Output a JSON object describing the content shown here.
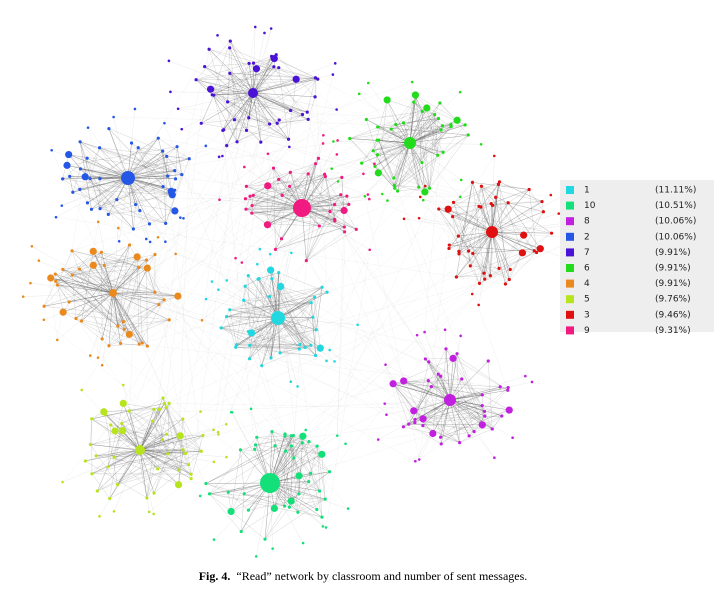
{
  "figure": {
    "legend": {
      "items": [
        {
          "label": "1",
          "share": "(11.11%)",
          "color": "#22d8e0"
        },
        {
          "label": "10",
          "share": "(10.51%)",
          "color": "#14e07a"
        },
        {
          "label": "8",
          "share": "(10.06%)",
          "color": "#c21fe0"
        },
        {
          "label": "2",
          "share": "(10.06%)",
          "color": "#2457e6"
        },
        {
          "label": "7",
          "share": "(9.91%)",
          "color": "#4a12d6"
        },
        {
          "label": "6",
          "share": "(9.91%)",
          "color": "#22dc1c"
        },
        {
          "label": "4",
          "share": "(9.91%)",
          "color": "#ea8a1e"
        },
        {
          "label": "5",
          "share": "(9.76%)",
          "color": "#b8e41e"
        },
        {
          "label": "3",
          "share": "(9.46%)",
          "color": "#e01010"
        },
        {
          "label": "9",
          "share": "(9.31%)",
          "color": "#f01a80"
        }
      ]
    },
    "caption": {
      "label": "Fig. 4.",
      "text": "“Read” network by classroom and number of sent messages."
    }
  }
}
